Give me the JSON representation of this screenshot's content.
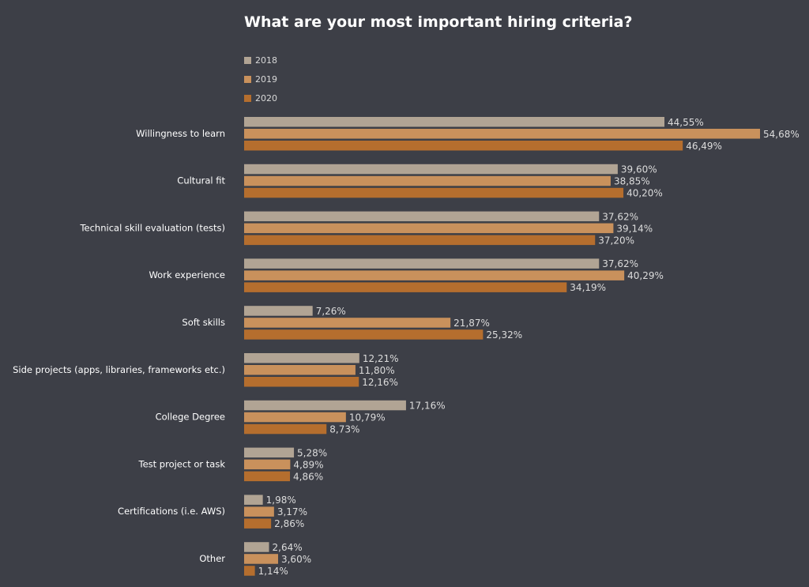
{
  "chart_data": {
    "type": "bar",
    "orientation": "horizontal",
    "title": "What are your most important hiring criteria?",
    "categories": [
      "Willingness to learn",
      "Cultural fit",
      "Technical skill evaluation (tests)",
      "Work experience",
      "Soft skills",
      "Side projects (apps, libraries, frameworks etc.)",
      "College Degree",
      "Test project or task",
      "Certifications (i.e. AWS)",
      "Other"
    ],
    "series": [
      {
        "name": "2018",
        "color": "#b1a494",
        "values": [
          44.55,
          39.6,
          37.62,
          37.62,
          7.26,
          12.21,
          17.16,
          5.28,
          1.98,
          2.64
        ],
        "labels": [
          "44,55%",
          "39,60%",
          "37,62%",
          "37,62%",
          "7,26%",
          "12,21%",
          "17,16%",
          "5,28%",
          "1,98%",
          "2,64%"
        ]
      },
      {
        "name": "2019",
        "color": "#c9915c",
        "values": [
          54.68,
          38.85,
          39.14,
          40.29,
          21.87,
          11.8,
          10.79,
          4.89,
          3.17,
          3.6
        ],
        "labels": [
          "54,68%",
          "38,85%",
          "39,14%",
          "40,29%",
          "21,87%",
          "11,80%",
          "10,79%",
          "4,89%",
          "3,17%",
          "3,60%"
        ]
      },
      {
        "name": "2020",
        "color": "#b56e2e",
        "values": [
          46.49,
          40.2,
          37.2,
          34.19,
          25.32,
          12.16,
          8.73,
          4.86,
          2.86,
          1.14
        ],
        "labels": [
          "46,49%",
          "40,20%",
          "37,20%",
          "34,19%",
          "25,32%",
          "12,16%",
          "8,73%",
          "4,86%",
          "2,86%",
          "1,14%"
        ]
      }
    ],
    "xlim": [
      0,
      54.68
    ],
    "legend_position": "top-left",
    "grid": false
  }
}
